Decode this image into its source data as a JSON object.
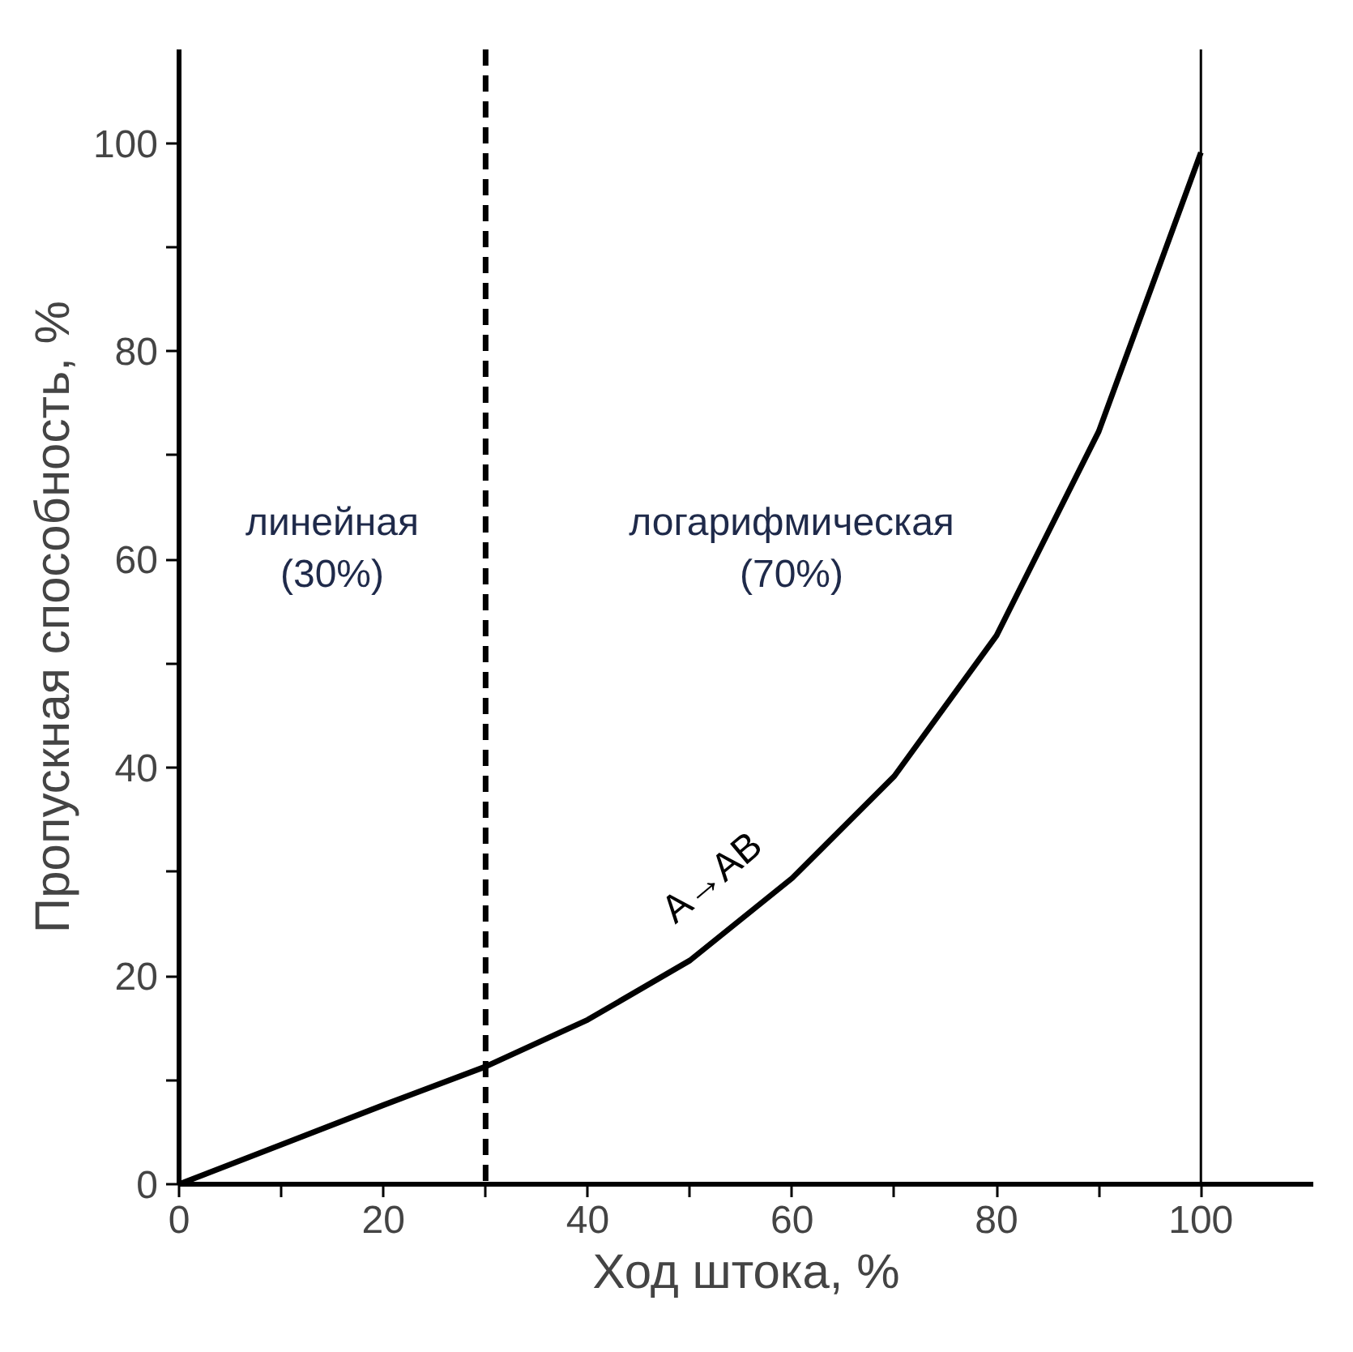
{
  "chart_data": {
    "type": "line",
    "xlabel": "Ход штока, %",
    "ylabel": "Пропускная способность, %",
    "x": [
      0,
      10,
      20,
      30,
      40,
      50,
      60,
      70,
      80,
      90,
      100
    ],
    "series": [
      {
        "color": "#000000",
        "values": [
          0,
          3.8,
          7.6,
          11.3,
          15.8,
          21.5,
          29.4,
          39.2,
          52.7,
          72.3,
          99.1
        ]
      }
    ],
    "xlim": [
      0,
      111
    ],
    "ylim": [
      0,
      109
    ],
    "xticks": [
      0,
      {
        "value": 10,
        "label": null
      },
      20,
      {
        "value": 30,
        "label": null
      },
      40,
      {
        "value": 50,
        "label": null
      },
      60,
      {
        "value": 70,
        "label": null
      },
      80,
      {
        "value": 90,
        "label": null
      },
      100
    ],
    "yticks": [
      0,
      {
        "value": 10,
        "label": null
      },
      20,
      {
        "value": 30,
        "label": null
      },
      40,
      {
        "value": 50,
        "label": null
      },
      60,
      {
        "value": 70,
        "label": null
      },
      80,
      {
        "value": 90,
        "label": null
      },
      100
    ],
    "ref_lines": [
      {
        "axis": "x",
        "value": 30,
        "line_style": "dashed",
        "color": "#000000"
      },
      {
        "axis": "x",
        "value": 100,
        "line_style": "solid",
        "color": "#000000"
      }
    ],
    "annotations": [
      "линейная\n(30%)",
      "логарифмическая\n(70%)",
      "A→AB"
    ],
    "grid": false,
    "marker": "none",
    "line_style": "solid"
  }
}
